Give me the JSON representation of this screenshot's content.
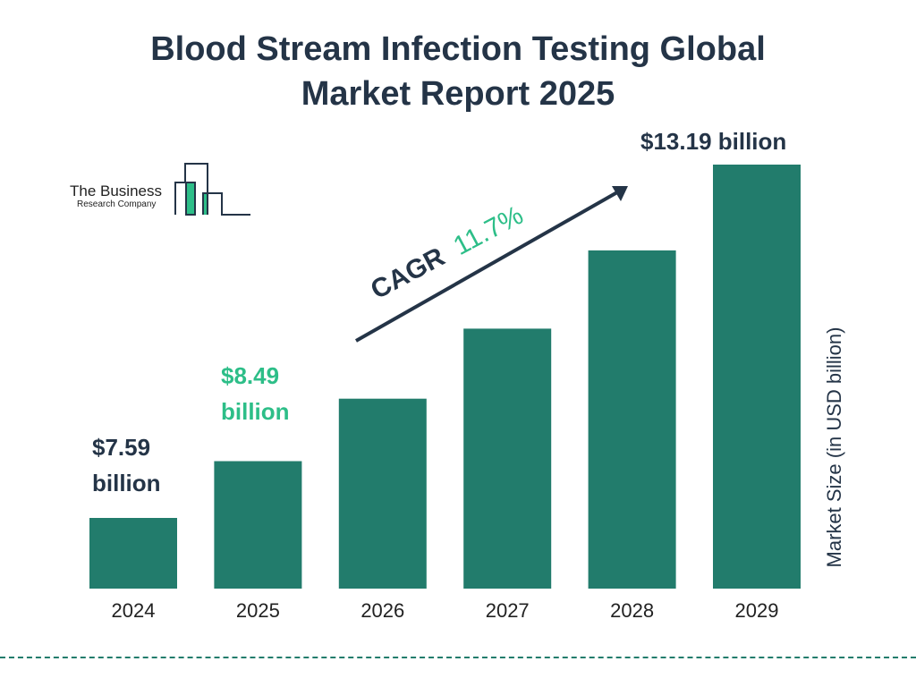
{
  "title_lines": [
    "Blood Stream Infection Testing Global",
    "Market Report 2025"
  ],
  "logo": {
    "line1": "The Business",
    "line2": "Research Company"
  },
  "colors": {
    "bar": "#227C6C",
    "highlight": "#2DBE88",
    "text": "#243447"
  },
  "cagr": {
    "label": "CAGR",
    "value": "11.7%"
  },
  "chart_data": {
    "type": "bar",
    "title": "Blood Stream Infection Testing Global Market Report 2025",
    "categories": [
      "2024",
      "2025",
      "2026",
      "2027",
      "2028",
      "2029"
    ],
    "values": [
      7.59,
      8.49,
      9.48,
      10.59,
      11.83,
      13.19
    ],
    "ylabel": "Market Size (in USD billion)",
    "xlabel": "",
    "grid": false,
    "data_labels": [
      {
        "category": "2024",
        "line1": "$7.59",
        "line2": "billion"
      },
      {
        "category": "2025",
        "line1": "$8.49",
        "line2": "billion"
      },
      {
        "category": "2029",
        "line1": "$13.19 billion"
      }
    ]
  }
}
